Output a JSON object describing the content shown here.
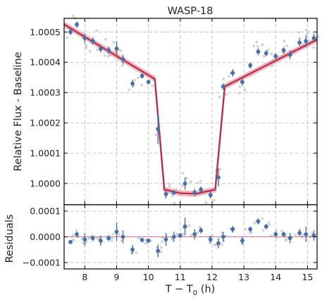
{
  "chart_data": [
    {
      "panel": "main",
      "type": "scatter",
      "title": "WASP-18",
      "xlabel": "",
      "ylabel": "Relative Flux - Baseline",
      "xlim": [
        7.35,
        15.3
      ],
      "ylim": [
        0.99993,
        1.000545
      ],
      "xticks": [
        8,
        9,
        10,
        11,
        12,
        13,
        14,
        15
      ],
      "xtick_labels": [
        "8",
        "9",
        "10",
        "11",
        "12",
        "13",
        "14",
        "15"
      ],
      "yticks": [
        1.0,
        1.0001,
        1.0002,
        1.0003,
        1.0004,
        1.0005
      ],
      "ytick_labels": [
        "1.0000",
        "1.0001",
        "1.0002",
        "1.0003",
        "1.0004",
        "1.0005"
      ],
      "grid": true,
      "colors": {
        "binned": "#4a6fa5",
        "model": "#b03050",
        "model_band": "#e8a0aa",
        "raw": "#c8c8c8"
      },
      "model_curve": [
        {
          "x": 7.35,
          "y": 1.000525
        },
        {
          "x": 10.2,
          "y": 1.000345
        },
        {
          "x": 10.5,
          "y": 0.99998
        },
        {
          "x": 11.0,
          "y": 0.999968
        },
        {
          "x": 11.5,
          "y": 0.999966
        },
        {
          "x": 12.1,
          "y": 0.99998
        },
        {
          "x": 12.4,
          "y": 1.00032
        },
        {
          "x": 15.3,
          "y": 1.000475
        }
      ],
      "binned_points": [
        {
          "x": 7.55,
          "y": 1.0005,
          "err": 1e-05
        },
        {
          "x": 7.75,
          "y": 1.000525,
          "err": 1e-05
        },
        {
          "x": 8.0,
          "y": 1.00048,
          "err": 1.5e-05
        },
        {
          "x": 8.25,
          "y": 1.00047,
          "err": 1.2e-05
        },
        {
          "x": 8.5,
          "y": 1.000445,
          "err": 1.2e-05
        },
        {
          "x": 8.75,
          "y": 1.00044,
          "err": 1.2e-05
        },
        {
          "x": 9.0,
          "y": 1.000445,
          "err": 2.5e-05
        },
        {
          "x": 9.2,
          "y": 1.00041,
          "err": 1.5e-05
        },
        {
          "x": 9.5,
          "y": 1.00033,
          "err": 1.2e-05
        },
        {
          "x": 9.8,
          "y": 1.000355,
          "err": 8e-06
        },
        {
          "x": 10.0,
          "y": 1.000335,
          "err": 8e-06
        },
        {
          "x": 10.3,
          "y": 1.00018,
          "err": 5e-05
        },
        {
          "x": 10.55,
          "y": 0.999965,
          "err": 1.5e-05
        },
        {
          "x": 10.8,
          "y": 0.99997,
          "err": 8e-06
        },
        {
          "x": 11.15,
          "y": 1.0,
          "err": 2e-05
        },
        {
          "x": 11.45,
          "y": 0.99997,
          "err": 1.2e-05
        },
        {
          "x": 11.65,
          "y": 0.99998,
          "err": 1e-05
        },
        {
          "x": 11.95,
          "y": 0.999962,
          "err": 1.2e-05
        },
        {
          "x": 12.2,
          "y": 1.00002,
          "err": 3e-05
        },
        {
          "x": 12.35,
          "y": 1.00032,
          "err": 1e-05
        },
        {
          "x": 12.65,
          "y": 1.000365,
          "err": 1.2e-05
        },
        {
          "x": 12.95,
          "y": 1.000335,
          "err": 1.2e-05
        },
        {
          "x": 13.2,
          "y": 1.00039,
          "err": 1e-05
        },
        {
          "x": 13.45,
          "y": 1.000435,
          "err": 1.2e-05
        },
        {
          "x": 13.7,
          "y": 1.00043,
          "err": 1e-05
        },
        {
          "x": 14.0,
          "y": 1.00042,
          "err": 1e-05
        },
        {
          "x": 14.25,
          "y": 1.00044,
          "err": 1e-05
        },
        {
          "x": 14.45,
          "y": 1.000425,
          "err": 1.5e-05
        },
        {
          "x": 14.75,
          "y": 1.000465,
          "err": 1.2e-05
        },
        {
          "x": 14.95,
          "y": 1.00047,
          "err": 2e-05
        },
        {
          "x": 15.2,
          "y": 1.00048,
          "err": 1.5e-05
        }
      ]
    },
    {
      "panel": "residuals",
      "type": "scatter",
      "xlabel": "T − T",
      "xlabel_sub": "0",
      "xlabel_unit": " (h)",
      "ylabel": "Residuals",
      "xlim": [
        7.35,
        15.3
      ],
      "ylim": [
        -0.000125,
        0.000125
      ],
      "xticks": [
        8,
        9,
        10,
        11,
        12,
        13,
        14,
        15
      ],
      "xtick_labels": [
        "8",
        "9",
        "10",
        "11",
        "12",
        "13",
        "14",
        "15"
      ],
      "yticks": [
        -0.0001,
        0.0,
        0.0001
      ],
      "ytick_labels": [
        "−0.0001",
        "0.0000",
        "0.0001"
      ],
      "grid": true,
      "binned_points": [
        {
          "x": 7.55,
          "y": -2e-05,
          "err": 8e-06
        },
        {
          "x": 7.75,
          "y": 1e-05,
          "err": 1e-05
        },
        {
          "x": 8.0,
          "y": -1e-05,
          "err": 2.5e-05
        },
        {
          "x": 8.25,
          "y": -5e-06,
          "err": 1.2e-05
        },
        {
          "x": 8.5,
          "y": -1.5e-05,
          "err": 2e-05
        },
        {
          "x": 8.75,
          "y": -5e-06,
          "err": 1.2e-05
        },
        {
          "x": 9.0,
          "y": 2e-05,
          "err": 3.5e-05
        },
        {
          "x": 9.2,
          "y": 0.0,
          "err": 2.5e-05
        },
        {
          "x": 9.5,
          "y": -5e-05,
          "err": 1.8e-05
        },
        {
          "x": 9.8,
          "y": -1.2e-05,
          "err": 8e-06
        },
        {
          "x": 10.0,
          "y": -1.5e-05,
          "err": 8e-06
        },
        {
          "x": 10.3,
          "y": -5.5e-05,
          "err": 2.5e-05
        },
        {
          "x": 10.55,
          "y": -1e-05,
          "err": 2.5e-05
        },
        {
          "x": 10.8,
          "y": 0.0,
          "err": 2e-05
        },
        {
          "x": 11.0,
          "y": 5e-06,
          "err": 1e-05
        },
        {
          "x": 11.15,
          "y": 4e-05,
          "err": 3.5e-05
        },
        {
          "x": 11.45,
          "y": 1e-05,
          "err": 2e-05
        },
        {
          "x": 11.65,
          "y": 2.5e-05,
          "err": 1.2e-05
        },
        {
          "x": 11.95,
          "y": -1e-05,
          "err": 1.5e-05
        },
        {
          "x": 12.2,
          "y": -2.5e-05,
          "err": 2e-05
        },
        {
          "x": 12.35,
          "y": 0.0,
          "err": 2e-05
        },
        {
          "x": 12.65,
          "y": 3e-05,
          "err": 1.2e-05
        },
        {
          "x": 12.95,
          "y": -1.5e-05,
          "err": 1.5e-05
        },
        {
          "x": 13.2,
          "y": 3e-05,
          "err": 1e-05
        },
        {
          "x": 13.45,
          "y": 6e-05,
          "err": 1.2e-05
        },
        {
          "x": 13.7,
          "y": 4e-05,
          "err": 1e-05
        },
        {
          "x": 14.0,
          "y": 1e-05,
          "err": 1e-05
        },
        {
          "x": 14.25,
          "y": 1e-05,
          "err": 1e-05
        },
        {
          "x": 14.45,
          "y": -5e-06,
          "err": 2e-05
        },
        {
          "x": 14.75,
          "y": 1.5e-05,
          "err": 1.2e-05
        },
        {
          "x": 14.95,
          "y": 1e-05,
          "err": 3e-05
        },
        {
          "x": 15.2,
          "y": 5e-06,
          "err": 2e-05
        }
      ]
    }
  ]
}
